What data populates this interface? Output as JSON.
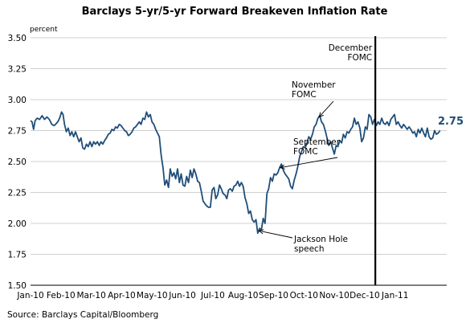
{
  "chart_data": {
    "type": "line",
    "title": "Barclays 5-yr/5-yr Forward Breakeven Inflation Rate",
    "ylabel": "percent",
    "ylim": [
      1.5,
      3.5
    ],
    "yticks": [
      1.5,
      1.75,
      2.0,
      2.25,
      2.5,
      2.75,
      3.0,
      3.25,
      3.5
    ],
    "ytick_labels": [
      "1.50",
      "1.75",
      "2.00",
      "2.25",
      "2.50",
      "2.75",
      "3.00",
      "3.25",
      "3.50"
    ],
    "grid": true,
    "x_start": "2010-01-01",
    "xlim": [
      0,
      13.7
    ],
    "xticks": [
      0,
      1,
      2,
      3,
      4,
      5,
      6,
      7,
      8,
      9,
      10,
      11,
      12
    ],
    "xtick_labels": [
      "Jan-10",
      "Feb-10",
      "Mar-10",
      "Apr-10",
      "May-10",
      "Jun-10",
      "Jul-10",
      "Aug-10",
      "Sep-10",
      "Oct-10",
      "Nov-10",
      "Dec-10",
      "Jan-11"
    ],
    "series": [
      {
        "name": "",
        "points": [
          [
            0.0,
            2.83
          ],
          [
            0.05,
            2.82
          ],
          [
            0.1,
            2.76
          ],
          [
            0.15,
            2.83
          ],
          [
            0.22,
            2.85
          ],
          [
            0.3,
            2.84
          ],
          [
            0.38,
            2.87
          ],
          [
            0.46,
            2.84
          ],
          [
            0.54,
            2.86
          ],
          [
            0.62,
            2.84
          ],
          [
            0.7,
            2.8
          ],
          [
            0.78,
            2.79
          ],
          [
            0.86,
            2.81
          ],
          [
            0.92,
            2.83
          ],
          [
            0.97,
            2.86
          ],
          [
            1.02,
            2.9
          ],
          [
            1.07,
            2.88
          ],
          [
            1.12,
            2.8
          ],
          [
            1.18,
            2.74
          ],
          [
            1.24,
            2.77
          ],
          [
            1.3,
            2.71
          ],
          [
            1.36,
            2.74
          ],
          [
            1.42,
            2.7
          ],
          [
            1.48,
            2.74
          ],
          [
            1.54,
            2.7
          ],
          [
            1.6,
            2.66
          ],
          [
            1.66,
            2.69
          ],
          [
            1.72,
            2.61
          ],
          [
            1.78,
            2.6
          ],
          [
            1.84,
            2.64
          ],
          [
            1.9,
            2.62
          ],
          [
            1.96,
            2.66
          ],
          [
            2.02,
            2.62
          ],
          [
            2.08,
            2.66
          ],
          [
            2.14,
            2.64
          ],
          [
            2.2,
            2.66
          ],
          [
            2.26,
            2.63
          ],
          [
            2.32,
            2.66
          ],
          [
            2.38,
            2.64
          ],
          [
            2.44,
            2.67
          ],
          [
            2.5,
            2.69
          ],
          [
            2.56,
            2.72
          ],
          [
            2.62,
            2.73
          ],
          [
            2.68,
            2.76
          ],
          [
            2.74,
            2.75
          ],
          [
            2.8,
            2.78
          ],
          [
            2.86,
            2.77
          ],
          [
            2.92,
            2.8
          ],
          [
            2.98,
            2.79
          ],
          [
            3.04,
            2.77
          ],
          [
            3.1,
            2.75
          ],
          [
            3.16,
            2.74
          ],
          [
            3.22,
            2.71
          ],
          [
            3.28,
            2.72
          ],
          [
            3.34,
            2.74
          ],
          [
            3.4,
            2.77
          ],
          [
            3.46,
            2.78
          ],
          [
            3.52,
            2.8
          ],
          [
            3.58,
            2.82
          ],
          [
            3.64,
            2.8
          ],
          [
            3.7,
            2.85
          ],
          [
            3.76,
            2.84
          ],
          [
            3.82,
            2.9
          ],
          [
            3.88,
            2.86
          ],
          [
            3.94,
            2.88
          ],
          [
            4.0,
            2.82
          ],
          [
            4.06,
            2.8
          ],
          [
            4.12,
            2.76
          ],
          [
            4.18,
            2.73
          ],
          [
            4.24,
            2.7
          ],
          [
            4.3,
            2.55
          ],
          [
            4.36,
            2.45
          ],
          [
            4.42,
            2.31
          ],
          [
            4.48,
            2.35
          ],
          [
            4.54,
            2.29
          ],
          [
            4.6,
            2.44
          ],
          [
            4.66,
            2.38
          ],
          [
            4.72,
            2.41
          ],
          [
            4.78,
            2.36
          ],
          [
            4.84,
            2.44
          ],
          [
            4.9,
            2.33
          ],
          [
            4.96,
            2.4
          ],
          [
            5.02,
            2.31
          ],
          [
            5.08,
            2.3
          ],
          [
            5.14,
            2.38
          ],
          [
            5.2,
            2.33
          ],
          [
            5.26,
            2.43
          ],
          [
            5.32,
            2.37
          ],
          [
            5.38,
            2.44
          ],
          [
            5.44,
            2.4
          ],
          [
            5.5,
            2.34
          ],
          [
            5.56,
            2.33
          ],
          [
            5.62,
            2.26
          ],
          [
            5.68,
            2.18
          ],
          [
            5.74,
            2.16
          ],
          [
            5.8,
            2.14
          ],
          [
            5.86,
            2.13
          ],
          [
            5.92,
            2.13
          ],
          [
            5.98,
            2.27
          ],
          [
            6.04,
            2.29
          ],
          [
            6.1,
            2.2
          ],
          [
            6.16,
            2.23
          ],
          [
            6.22,
            2.31
          ],
          [
            6.28,
            2.28
          ],
          [
            6.34,
            2.24
          ],
          [
            6.4,
            2.23
          ],
          [
            6.46,
            2.2
          ],
          [
            6.52,
            2.27
          ],
          [
            6.58,
            2.28
          ],
          [
            6.64,
            2.26
          ],
          [
            6.7,
            2.3
          ],
          [
            6.76,
            2.31
          ],
          [
            6.82,
            2.34
          ],
          [
            6.88,
            2.3
          ],
          [
            6.94,
            2.33
          ],
          [
            7.0,
            2.3
          ],
          [
            7.06,
            2.21
          ],
          [
            7.12,
            2.16
          ],
          [
            7.18,
            2.08
          ],
          [
            7.24,
            2.1
          ],
          [
            7.3,
            2.03
          ],
          [
            7.36,
            2.01
          ],
          [
            7.42,
            2.03
          ],
          [
            7.48,
            1.92
          ],
          [
            7.54,
            1.96
          ],
          [
            7.6,
            1.95
          ],
          [
            7.66,
            2.04
          ],
          [
            7.72,
            2.0
          ],
          [
            7.78,
            2.24
          ],
          [
            7.84,
            2.28
          ],
          [
            7.9,
            2.37
          ],
          [
            7.96,
            2.34
          ],
          [
            8.02,
            2.4
          ],
          [
            8.08,
            2.39
          ],
          [
            8.14,
            2.41
          ],
          [
            8.2,
            2.45
          ],
          [
            8.26,
            2.48
          ],
          [
            8.32,
            2.43
          ],
          [
            8.38,
            2.4
          ],
          [
            8.44,
            2.38
          ],
          [
            8.5,
            2.36
          ],
          [
            8.56,
            2.3
          ],
          [
            8.62,
            2.28
          ],
          [
            8.68,
            2.35
          ],
          [
            8.74,
            2.4
          ],
          [
            8.8,
            2.46
          ],
          [
            8.86,
            2.54
          ],
          [
            8.92,
            2.58
          ],
          [
            8.98,
            2.62
          ],
          [
            9.04,
            2.61
          ],
          [
            9.1,
            2.65
          ],
          [
            9.16,
            2.7
          ],
          [
            9.22,
            2.68
          ],
          [
            9.28,
            2.72
          ],
          [
            9.34,
            2.78
          ],
          [
            9.4,
            2.8
          ],
          [
            9.46,
            2.85
          ],
          [
            9.52,
            2.87
          ],
          [
            9.58,
            2.82
          ],
          [
            9.64,
            2.8
          ],
          [
            9.7,
            2.75
          ],
          [
            9.76,
            2.69
          ],
          [
            9.82,
            2.63
          ],
          [
            9.88,
            2.66
          ],
          [
            9.94,
            2.61
          ],
          [
            10.0,
            2.56
          ],
          [
            10.06,
            2.63
          ],
          [
            10.12,
            2.62
          ],
          [
            10.18,
            2.67
          ],
          [
            10.24,
            2.65
          ],
          [
            10.3,
            2.72
          ],
          [
            10.36,
            2.69
          ],
          [
            10.42,
            2.74
          ],
          [
            10.48,
            2.73
          ],
          [
            10.54,
            2.76
          ],
          [
            10.6,
            2.78
          ],
          [
            10.66,
            2.85
          ],
          [
            10.72,
            2.8
          ],
          [
            10.78,
            2.82
          ],
          [
            10.84,
            2.77
          ],
          [
            10.9,
            2.66
          ],
          [
            10.96,
            2.69
          ],
          [
            11.02,
            2.78
          ],
          [
            11.08,
            2.76
          ],
          [
            11.14,
            2.88
          ],
          [
            11.2,
            2.86
          ],
          [
            11.26,
            2.8
          ],
          [
            11.32,
            2.84
          ],
          [
            11.38,
            2.79
          ],
          [
            11.44,
            2.82
          ],
          [
            11.5,
            2.8
          ],
          [
            11.56,
            2.85
          ],
          [
            11.62,
            2.81
          ],
          [
            11.68,
            2.8
          ],
          [
            11.74,
            2.82
          ],
          [
            11.8,
            2.79
          ],
          [
            11.86,
            2.84
          ],
          [
            11.92,
            2.86
          ],
          [
            11.98,
            2.88
          ],
          [
            12.04,
            2.8
          ],
          [
            12.1,
            2.82
          ],
          [
            12.16,
            2.79
          ],
          [
            12.22,
            2.77
          ],
          [
            12.28,
            2.8
          ],
          [
            12.34,
            2.78
          ],
          [
            12.4,
            2.76
          ],
          [
            12.46,
            2.78
          ],
          [
            12.52,
            2.76
          ],
          [
            12.58,
            2.73
          ],
          [
            12.64,
            2.74
          ],
          [
            12.7,
            2.7
          ],
          [
            12.76,
            2.76
          ],
          [
            12.82,
            2.73
          ],
          [
            12.88,
            2.77
          ],
          [
            12.94,
            2.73
          ],
          [
            13.0,
            2.7
          ],
          [
            13.06,
            2.77
          ],
          [
            13.12,
            2.7
          ],
          [
            13.18,
            2.68
          ],
          [
            13.24,
            2.69
          ],
          [
            13.3,
            2.75
          ],
          [
            13.36,
            2.72
          ],
          [
            13.42,
            2.73
          ],
          [
            13.48,
            2.75
          ]
        ]
      }
    ],
    "vertical_line": {
      "x": 11.35,
      "label": [
        "December",
        "FOMC"
      ]
    },
    "last_value_label": "2.75",
    "annotations": [
      {
        "text": [
          "November",
          "FOMC"
        ],
        "target": [
          9.5,
          2.86
        ]
      },
      {
        "text": [
          "September",
          "FOMC"
        ],
        "target": [
          8.22,
          2.45
        ]
      },
      {
        "text": [
          "Jackson Hole",
          "speech"
        ],
        "target": [
          7.52,
          1.94
        ]
      }
    ],
    "source": "Source: Barclays Capital/Bloomberg",
    "colors": {
      "series": "#1f4e79",
      "grid": "#d0d0d0",
      "axis": "#000000"
    }
  }
}
